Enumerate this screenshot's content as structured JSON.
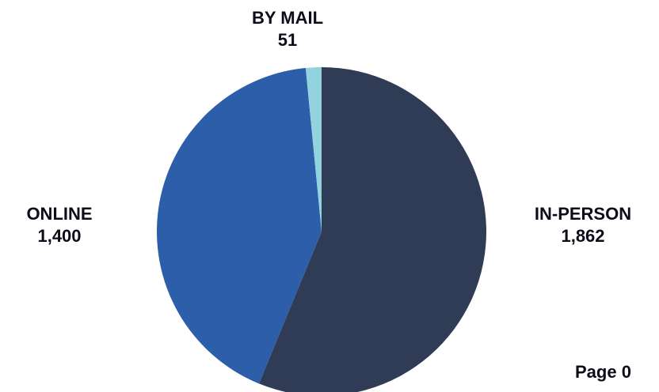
{
  "chart_data": {
    "type": "pie",
    "slices": [
      {
        "label": "IN-PERSON",
        "value": 1862,
        "value_label": "1,862",
        "color": "#303b55"
      },
      {
        "label": "ONLINE",
        "value": 1400,
        "value_label": "1,400",
        "color": "#2d5ea9"
      },
      {
        "label": "BY MAIL",
        "value": 51,
        "value_label": "51",
        "color": "#93d3df"
      }
    ],
    "start_angle": "12 o'clock",
    "direction": "clockwise"
  },
  "footer": {
    "page_label": "Page 0"
  }
}
